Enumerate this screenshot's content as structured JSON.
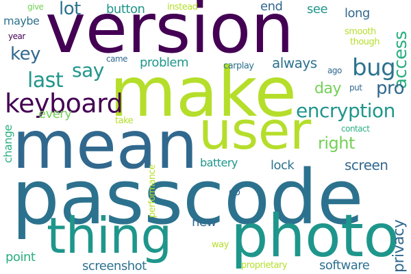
{
  "cloud": {
    "background": "#ffffff",
    "words": [
      {
        "text": "passcode",
        "color": "#2c728e"
      },
      {
        "text": "version",
        "color": "#440154"
      },
      {
        "text": "make",
        "color": "#b5de2b"
      },
      {
        "text": "mean",
        "color": "#31688e"
      },
      {
        "text": "user",
        "color": "#b5de2b"
      },
      {
        "text": "photo",
        "color": "#1f968b"
      },
      {
        "text": "thing",
        "color": "#1f968b"
      },
      {
        "text": "keyboard",
        "color": "#440154"
      },
      {
        "text": "bug",
        "color": "#2c728e"
      },
      {
        "text": "encryption",
        "color": "#1f968b"
      },
      {
        "text": "last",
        "color": "#1f968b"
      },
      {
        "text": "say",
        "color": "#1f968b"
      },
      {
        "text": "key",
        "color": "#31688e"
      },
      {
        "text": "access",
        "color": "#29af7f"
      },
      {
        "text": "pro",
        "color": "#31688e"
      },
      {
        "text": "lot",
        "color": "#2c728e"
      },
      {
        "text": "day",
        "color": "#73d056"
      },
      {
        "text": "right",
        "color": "#73d056"
      },
      {
        "text": "screen",
        "color": "#31688e"
      },
      {
        "text": "privacy",
        "color": "#31688e"
      },
      {
        "text": "problem",
        "color": "#1f968b"
      },
      {
        "text": "always",
        "color": "#2c728e"
      },
      {
        "text": "button",
        "color": "#1f968b"
      },
      {
        "text": "see",
        "color": "#1f968b"
      },
      {
        "text": "long",
        "color": "#31688e"
      },
      {
        "text": "end",
        "color": "#31688e"
      },
      {
        "text": "maybe",
        "color": "#2c728e"
      },
      {
        "text": "every",
        "color": "#73d056"
      },
      {
        "text": "lock",
        "color": "#2c728e"
      },
      {
        "text": "battery",
        "color": "#1f968b"
      },
      {
        "text": "new",
        "color": "#31688e"
      },
      {
        "text": "point",
        "color": "#29af7f"
      },
      {
        "text": "screenshot",
        "color": "#2c728e"
      },
      {
        "text": "software",
        "color": "#2c728e"
      },
      {
        "text": "change",
        "color": "#29af7f"
      },
      {
        "text": "give",
        "color": "#73d056"
      },
      {
        "text": "instead",
        "color": "#b5de2b"
      },
      {
        "text": "year",
        "color": "#440154"
      },
      {
        "text": "came",
        "color": "#31688e"
      },
      {
        "text": "take",
        "color": "#b5de2b"
      },
      {
        "text": "performance",
        "color": "#b5de2b"
      },
      {
        "text": "carplay",
        "color": "#2c728e"
      },
      {
        "text": "smooth",
        "color": "#b5de2b"
      },
      {
        "text": "though",
        "color": "#b5de2b"
      },
      {
        "text": "ago",
        "color": "#31688e"
      },
      {
        "text": "put",
        "color": "#31688e"
      },
      {
        "text": "contact",
        "color": "#29af7f"
      },
      {
        "text": "go",
        "color": "#31688e"
      },
      {
        "text": "way",
        "color": "#b5de2b"
      },
      {
        "text": "proprietary",
        "color": "#b5de2b"
      }
    ]
  }
}
